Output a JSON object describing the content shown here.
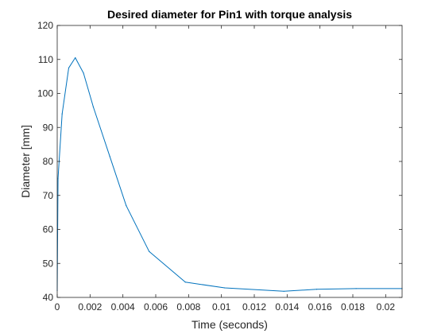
{
  "chart_data": {
    "type": "line",
    "title": "Desired diameter for Pin1 with torque analysis",
    "xlabel": "Time (seconds)",
    "ylabel": "Diameter [mm]",
    "xlim": [
      0,
      0.021
    ],
    "ylim": [
      40,
      120
    ],
    "xticks": [
      0,
      0.002,
      0.004,
      0.006,
      0.008,
      0.01,
      0.012,
      0.014,
      0.016,
      0.018,
      0.02
    ],
    "xtick_labels": [
      "0",
      "0.002",
      "0.004",
      "0.006",
      "0.008",
      "0.01",
      "0.012",
      "0.014",
      "0.016",
      "0.018",
      "0.02"
    ],
    "yticks": [
      40,
      50,
      60,
      70,
      80,
      90,
      100,
      110,
      120
    ],
    "ytick_labels": [
      "40",
      "50",
      "60",
      "70",
      "80",
      "90",
      "100",
      "110",
      "120"
    ],
    "grid": false,
    "box": true,
    "colors": {
      "line": "#0072bd",
      "axis": "#262626",
      "background": "#ffffff"
    },
    "series": [
      {
        "x": [
          0,
          5e-05,
          0.0003,
          0.0007,
          0.0011,
          0.0016,
          0.0022,
          0.0032,
          0.0042,
          0.0056,
          0.0078,
          0.0102,
          0.0138,
          0.0158,
          0.0182,
          0.021
        ],
        "y": [
          42,
          75,
          94,
          107.5,
          110.5,
          106,
          96,
          81.5,
          67,
          53.5,
          44.5,
          42.8,
          41.8,
          42.4,
          42.6,
          42.6
        ]
      }
    ]
  }
}
